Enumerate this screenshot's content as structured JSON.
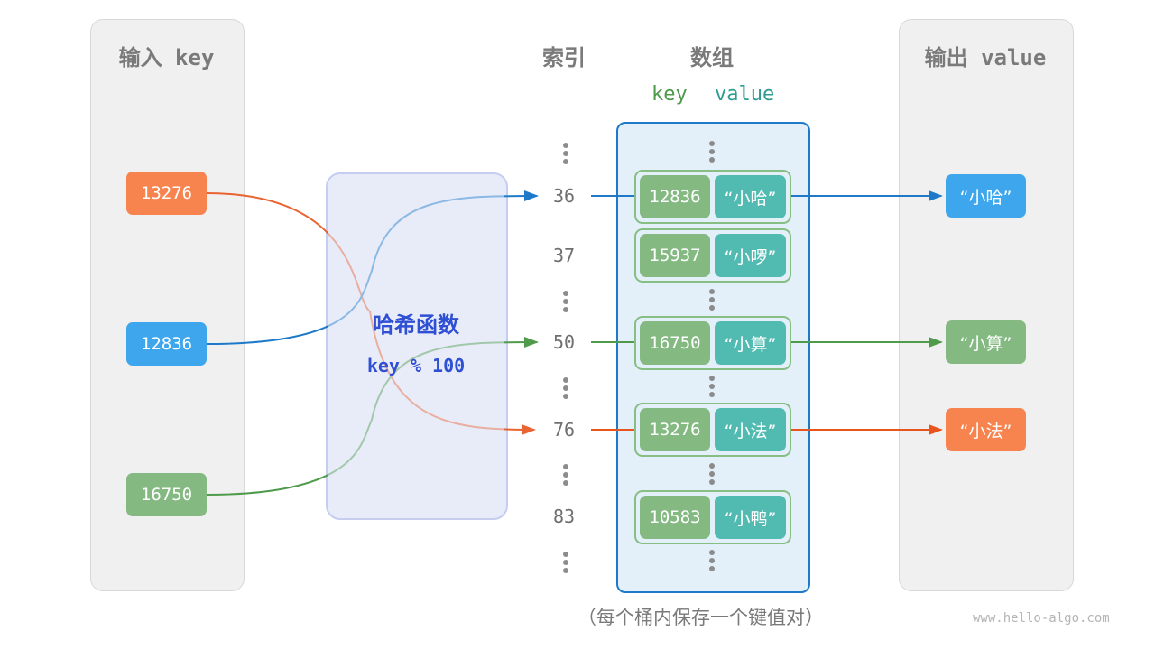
{
  "input": {
    "title": "输入 key",
    "keys": [
      {
        "label": "13276",
        "color": "#f7844f"
      },
      {
        "label": "12836",
        "color": "#3ea6ec"
      },
      {
        "label": "16750",
        "color": "#84b982"
      }
    ]
  },
  "hash": {
    "title": "哈希函数",
    "formula": "key % 100"
  },
  "index": {
    "title": "索引",
    "values": [
      "36",
      "37",
      "50",
      "76",
      "83"
    ]
  },
  "array": {
    "title": "数组",
    "key_label": "key",
    "value_label": "value",
    "rows": [
      {
        "key": "12836",
        "value": "“小哈”"
      },
      {
        "key": "15937",
        "value": "“小啰”"
      },
      {
        "key": "16750",
        "value": "“小算”"
      },
      {
        "key": "13276",
        "value": "“小法”"
      },
      {
        "key": "10583",
        "value": "“小鸭”"
      }
    ],
    "caption": "（每个桶内保存一个键值对）"
  },
  "output": {
    "title": "输出 value",
    "values": [
      {
        "label": "“小哈”",
        "color": "#3ea6ec"
      },
      {
        "label": "“小算”",
        "color": "#84b982"
      },
      {
        "label": "“小法”",
        "color": "#f7844f"
      }
    ]
  },
  "watermark": "www.hello-algo.com"
}
